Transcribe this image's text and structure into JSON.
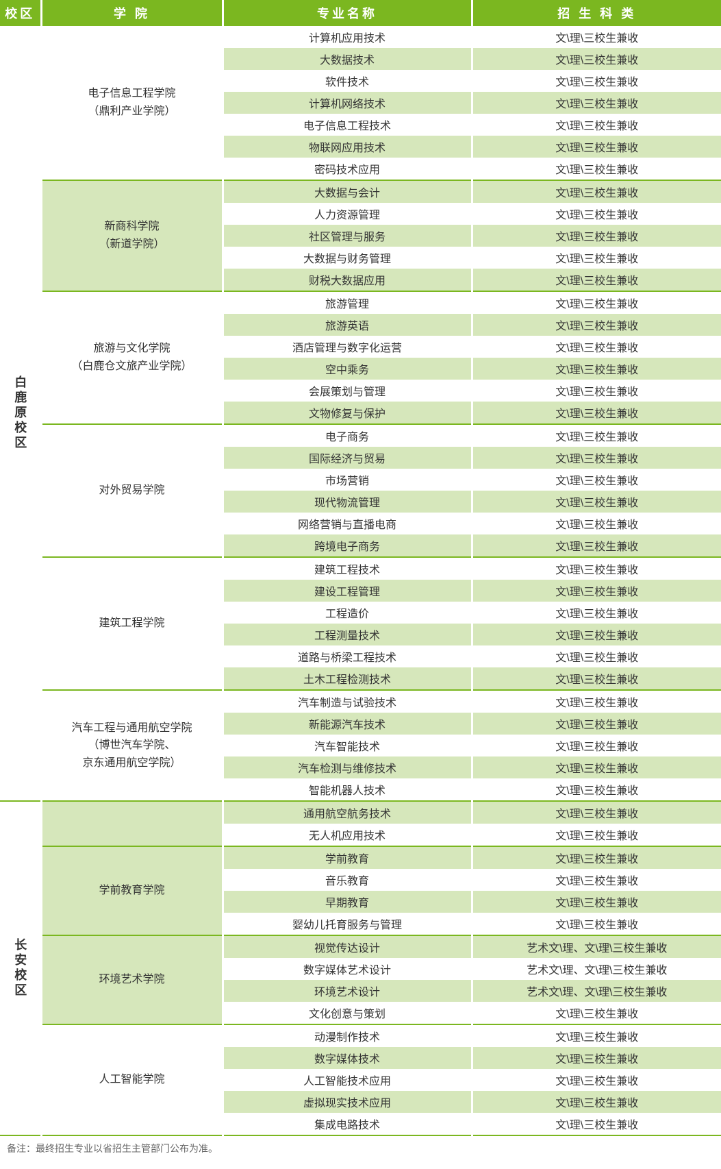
{
  "headers": {
    "campus": "校区",
    "college": "学 院",
    "major": "专业名称",
    "category": "招 生 科 类"
  },
  "colors": {
    "header_bg": "#7bb720",
    "header_fg": "#ffffff",
    "row_light": "#ffffff",
    "row_dark": "#d6e7bb",
    "border": "#7bb720",
    "text": "#333333"
  },
  "column_widths": [
    "60px",
    "265px",
    "364px",
    "364px"
  ],
  "default_category": "文\\理\\三校生兼收",
  "art_category": "艺术文\\理、文\\理\\三校生兼收",
  "campuses": [
    {
      "name": "白鹿原校区",
      "colleges": [
        {
          "name": "电子信息工程学院\n（鼎利产业学院）",
          "start_dark": false,
          "majors": [
            {
              "name": "计算机应用技术"
            },
            {
              "name": "大数据技术"
            },
            {
              "name": "软件技术"
            },
            {
              "name": "计算机网络技术"
            },
            {
              "name": "电子信息工程技术"
            },
            {
              "name": "物联网应用技术"
            },
            {
              "name": "密码技术应用"
            }
          ]
        },
        {
          "name": "新商科学院\n（新道学院）",
          "start_dark": true,
          "majors": [
            {
              "name": "大数据与会计"
            },
            {
              "name": "人力资源管理"
            },
            {
              "name": "社区管理与服务"
            },
            {
              "name": "大数据与财务管理"
            },
            {
              "name": "财税大数据应用"
            }
          ]
        },
        {
          "name": "旅游与文化学院\n（白鹿仓文旅产业学院）",
          "start_dark": false,
          "majors": [
            {
              "name": "旅游管理"
            },
            {
              "name": "旅游英语"
            },
            {
              "name": "酒店管理与数字化运营"
            },
            {
              "name": "空中乘务"
            },
            {
              "name": "会展策划与管理"
            },
            {
              "name": "文物修复与保护"
            }
          ]
        },
        {
          "name": "对外贸易学院",
          "start_dark": false,
          "majors": [
            {
              "name": "电子商务"
            },
            {
              "name": "国际经济与贸易"
            },
            {
              "name": "市场营销"
            },
            {
              "name": "现代物流管理"
            },
            {
              "name": "网络营销与直播电商"
            },
            {
              "name": "跨境电子商务"
            }
          ]
        },
        {
          "name": "建筑工程学院",
          "start_dark": false,
          "majors": [
            {
              "name": "建筑工程技术"
            },
            {
              "name": "建设工程管理"
            },
            {
              "name": "工程造价"
            },
            {
              "name": "工程测量技术"
            },
            {
              "name": "道路与桥梁工程技术"
            },
            {
              "name": "土木工程检测技术"
            }
          ]
        },
        {
          "name": "汽车工程与通用航空学院\n（博世汽车学院、\n京东通用航空学院）",
          "start_dark": false,
          "majors": [
            {
              "name": "汽车制造与试验技术"
            },
            {
              "name": "新能源汽车技术"
            },
            {
              "name": "汽车智能技术"
            },
            {
              "name": "汽车检测与维修技术"
            },
            {
              "name": "智能机器人技术"
            }
          ]
        }
      ]
    },
    {
      "name": "长安校区",
      "colleges": [
        {
          "name": "__continue__",
          "start_dark": true,
          "majors": [
            {
              "name": "通用航空航务技术"
            },
            {
              "name": "无人机应用技术"
            }
          ]
        },
        {
          "name": "学前教育学院",
          "start_dark": true,
          "majors": [
            {
              "name": "学前教育"
            },
            {
              "name": "音乐教育"
            },
            {
              "name": "早期教育"
            },
            {
              "name": "婴幼儿托育服务与管理"
            }
          ]
        },
        {
          "name": "环境艺术学院",
          "start_dark": true,
          "majors": [
            {
              "name": "视觉传达设计",
              "category_key": "art_category"
            },
            {
              "name": "数字媒体艺术设计",
              "category_key": "art_category"
            },
            {
              "name": "环境艺术设计",
              "category_key": "art_category"
            },
            {
              "name": "文化创意与策划"
            }
          ]
        },
        {
          "name": "人工智能学院",
          "start_dark": false,
          "majors": [
            {
              "name": "动漫制作技术"
            },
            {
              "name": "数字媒体技术"
            },
            {
              "name": "人工智能技术应用"
            },
            {
              "name": "虚拟现实技术应用"
            },
            {
              "name": "集成电路技术"
            }
          ]
        }
      ]
    }
  ],
  "footnote": "备注：最终招生专业以省招生主管部门公布为准。"
}
